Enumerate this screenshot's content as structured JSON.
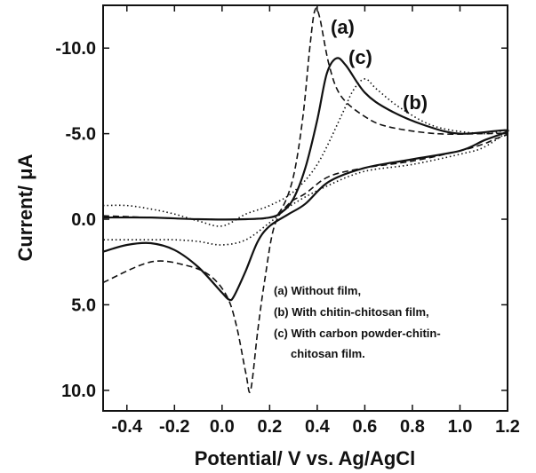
{
  "chart_data": {
    "type": "line",
    "title": "",
    "xlabel": "Potential/ V vs. Ag/AgCl",
    "ylabel_prefix": "Current/ ",
    "ylabel_unit": "μA",
    "xlim": [
      -0.5,
      1.2
    ],
    "ylim": [
      -12.5,
      11.2
    ],
    "y_inverted": true,
    "grid": false,
    "x_ticks": [
      -0.4,
      -0.2,
      0.0,
      0.2,
      0.4,
      0.6,
      0.8,
      1.0,
      1.2
    ],
    "x_tick_labels": [
      "-0.4",
      "-0.2",
      "0.0",
      "0.2",
      "0.4",
      "0.6",
      "0.8",
      "1.0",
      "1.2"
    ],
    "y_ticks": [
      -10,
      -5,
      0,
      5,
      10
    ],
    "y_tick_labels": [
      "-10.0",
      "-5.0",
      "0.0",
      "5.0",
      "10.0"
    ],
    "legend_position": "bottom-right",
    "legend": [
      "(a) Without film,",
      "(b) With chitin-chitosan film,",
      "(c) With carbon powder-chitin-",
      "chitosan film."
    ],
    "series": [
      {
        "label": "(a)",
        "style": "dashed",
        "points": [
          [
            -0.5,
            -0.2
          ],
          [
            -0.3,
            -0.1
          ],
          [
            -0.1,
            0.0
          ],
          [
            0.1,
            0.0
          ],
          [
            0.2,
            -0.1
          ],
          [
            0.25,
            -0.6
          ],
          [
            0.3,
            -2.5
          ],
          [
            0.34,
            -6.0
          ],
          [
            0.37,
            -10.2
          ],
          [
            0.39,
            -12.2
          ],
          [
            0.41,
            -11.8
          ],
          [
            0.45,
            -9.0
          ],
          [
            0.5,
            -7.2
          ],
          [
            0.6,
            -6.0
          ],
          [
            0.7,
            -5.4
          ],
          [
            0.9,
            -5.0
          ],
          [
            1.1,
            -5.0
          ],
          [
            1.2,
            -5.0
          ],
          [
            1.15,
            -4.7
          ],
          [
            1.1,
            -4.4
          ],
          [
            1.0,
            -4.0
          ],
          [
            0.8,
            -3.4
          ],
          [
            0.6,
            -3.0
          ],
          [
            0.45,
            -2.5
          ],
          [
            0.35,
            -1.5
          ],
          [
            0.28,
            -0.9
          ],
          [
            0.22,
            0.4
          ],
          [
            0.18,
            3.5
          ],
          [
            0.15,
            6.5
          ],
          [
            0.12,
            10.0
          ],
          [
            0.1,
            9.0
          ],
          [
            0.06,
            6.2
          ],
          [
            0.02,
            4.5
          ],
          [
            -0.05,
            3.3
          ],
          [
            -0.15,
            2.7
          ],
          [
            -0.3,
            2.5
          ],
          [
            -0.5,
            3.7
          ]
        ]
      },
      {
        "label": "(b)",
        "style": "dotted",
        "points": [
          [
            -0.5,
            -0.8
          ],
          [
            -0.4,
            -0.8
          ],
          [
            -0.3,
            -0.6
          ],
          [
            -0.2,
            -0.3
          ],
          [
            -0.1,
            0.1
          ],
          [
            0.0,
            0.4
          ],
          [
            0.1,
            -0.3
          ],
          [
            0.2,
            -0.8
          ],
          [
            0.3,
            -1.6
          ],
          [
            0.4,
            -3.2
          ],
          [
            0.5,
            -6.0
          ],
          [
            0.55,
            -7.5
          ],
          [
            0.6,
            -8.2
          ],
          [
            0.65,
            -7.6
          ],
          [
            0.75,
            -6.5
          ],
          [
            0.9,
            -5.4
          ],
          [
            1.1,
            -5.0
          ],
          [
            1.2,
            -5.2
          ],
          [
            1.1,
            -4.2
          ],
          [
            1.0,
            -3.8
          ],
          [
            0.8,
            -3.2
          ],
          [
            0.6,
            -2.8
          ],
          [
            0.45,
            -2.0
          ],
          [
            0.3,
            -0.9
          ],
          [
            0.2,
            0.2
          ],
          [
            0.1,
            1.2
          ],
          [
            0.0,
            1.5
          ],
          [
            -0.1,
            1.3
          ],
          [
            -0.2,
            1.2
          ],
          [
            -0.3,
            1.2
          ],
          [
            -0.5,
            1.2
          ]
        ]
      },
      {
        "label": "(c)",
        "style": "solid",
        "points": [
          [
            -0.5,
            -0.1
          ],
          [
            -0.3,
            -0.1
          ],
          [
            -0.1,
            0.0
          ],
          [
            0.1,
            0.0
          ],
          [
            0.2,
            -0.1
          ],
          [
            0.25,
            -0.4
          ],
          [
            0.3,
            -1.2
          ],
          [
            0.35,
            -3.0
          ],
          [
            0.4,
            -5.8
          ],
          [
            0.44,
            -8.5
          ],
          [
            0.48,
            -9.4
          ],
          [
            0.52,
            -9.0
          ],
          [
            0.6,
            -7.4
          ],
          [
            0.7,
            -6.4
          ],
          [
            0.85,
            -5.5
          ],
          [
            1.0,
            -5.0
          ],
          [
            1.2,
            -5.2
          ],
          [
            1.1,
            -4.6
          ],
          [
            1.0,
            -4.0
          ],
          [
            0.8,
            -3.5
          ],
          [
            0.6,
            -3.0
          ],
          [
            0.45,
            -2.2
          ],
          [
            0.35,
            -0.9
          ],
          [
            0.28,
            -0.3
          ],
          [
            0.2,
            0.4
          ],
          [
            0.15,
            1.3
          ],
          [
            0.1,
            3.0
          ],
          [
            0.05,
            4.5
          ],
          [
            0.03,
            4.7
          ],
          [
            0.0,
            4.3
          ],
          [
            -0.1,
            2.8
          ],
          [
            -0.2,
            1.8
          ],
          [
            -0.3,
            1.4
          ],
          [
            -0.4,
            1.5
          ],
          [
            -0.5,
            1.9
          ]
        ]
      }
    ]
  }
}
